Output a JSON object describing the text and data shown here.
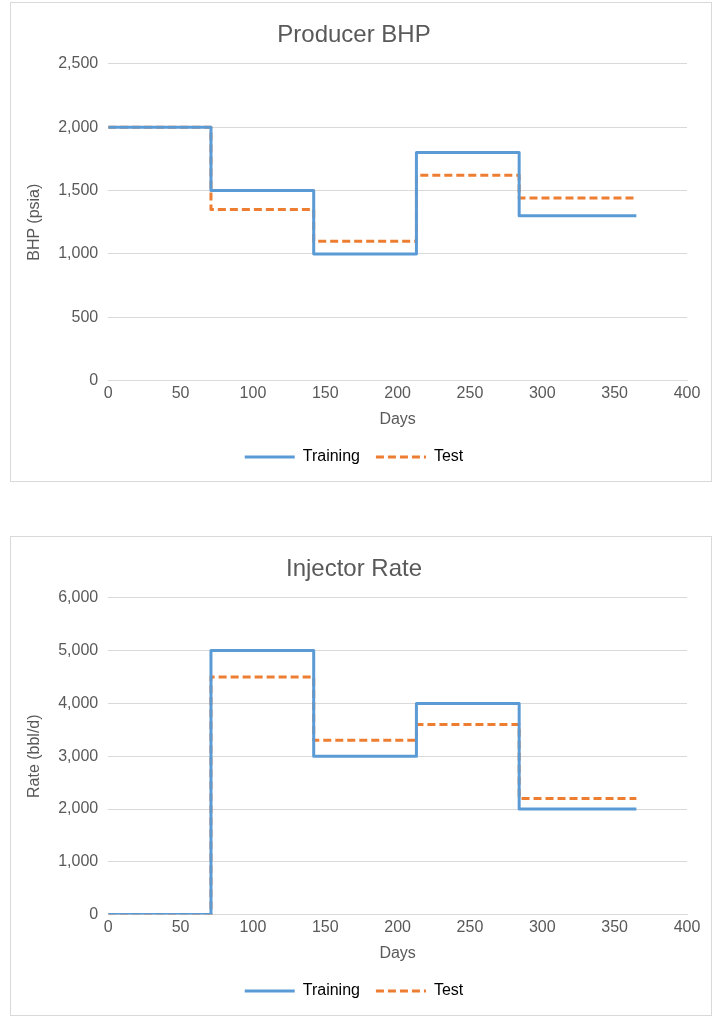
{
  "chart_data": [
    {
      "type": "step",
      "title": "Producer BHP",
      "xlabel": "Days",
      "ylabel": "BHP (psia)",
      "x": [
        0,
        71,
        142,
        213,
        284,
        365
      ],
      "series": [
        {
          "name": "Training",
          "color": "#5b9bd5",
          "values": [
            2000,
            1500,
            1000,
            1800,
            1300,
            1300
          ]
        },
        {
          "name": "Test",
          "color": "#ed7d31",
          "values": [
            2000,
            1350,
            1100,
            1620,
            1440,
            1440
          ],
          "line_style": "dashed"
        }
      ],
      "xlim": [
        0,
        400
      ],
      "xticks": [
        0,
        50,
        100,
        150,
        200,
        250,
        300,
        350,
        400
      ],
      "ylim": [
        0,
        2500
      ],
      "yticks": [
        {
          "value": 0,
          "label": "0"
        },
        {
          "value": 500,
          "label": "500"
        },
        {
          "value": 1000,
          "label": "1,000"
        },
        {
          "value": 1500,
          "label": "1,500"
        },
        {
          "value": 2000,
          "label": "2,000"
        },
        {
          "value": 2500,
          "label": "2,500"
        }
      ],
      "grid": "y",
      "legend": "bottom",
      "marker": "none"
    },
    {
      "type": "step",
      "title": "Injector Rate",
      "xlabel": "Days",
      "ylabel": "Rate (bbl/d)",
      "x": [
        0,
        71,
        142,
        213,
        284,
        365
      ],
      "series": [
        {
          "name": "Training",
          "color": "#5b9bd5",
          "values": [
            0,
            5000,
            3000,
            4000,
            2000,
            2000
          ]
        },
        {
          "name": "Test",
          "color": "#ed7d31",
          "values": [
            0,
            4500,
            3300,
            3600,
            2200,
            2200
          ],
          "line_style": "dashed"
        }
      ],
      "xlim": [
        0,
        400
      ],
      "xticks": [
        0,
        50,
        100,
        150,
        200,
        250,
        300,
        350,
        400
      ],
      "ylim": [
        0,
        6000
      ],
      "yticks": [
        {
          "value": 0,
          "label": "0"
        },
        {
          "value": 1000,
          "label": "1,000"
        },
        {
          "value": 2000,
          "label": "2,000"
        },
        {
          "value": 3000,
          "label": "3,000"
        },
        {
          "value": 4000,
          "label": "4,000"
        },
        {
          "value": 5000,
          "label": "5,000"
        },
        {
          "value": 6000,
          "label": "6,000"
        }
      ],
      "grid": "y",
      "legend": "bottom",
      "marker": "none"
    }
  ]
}
